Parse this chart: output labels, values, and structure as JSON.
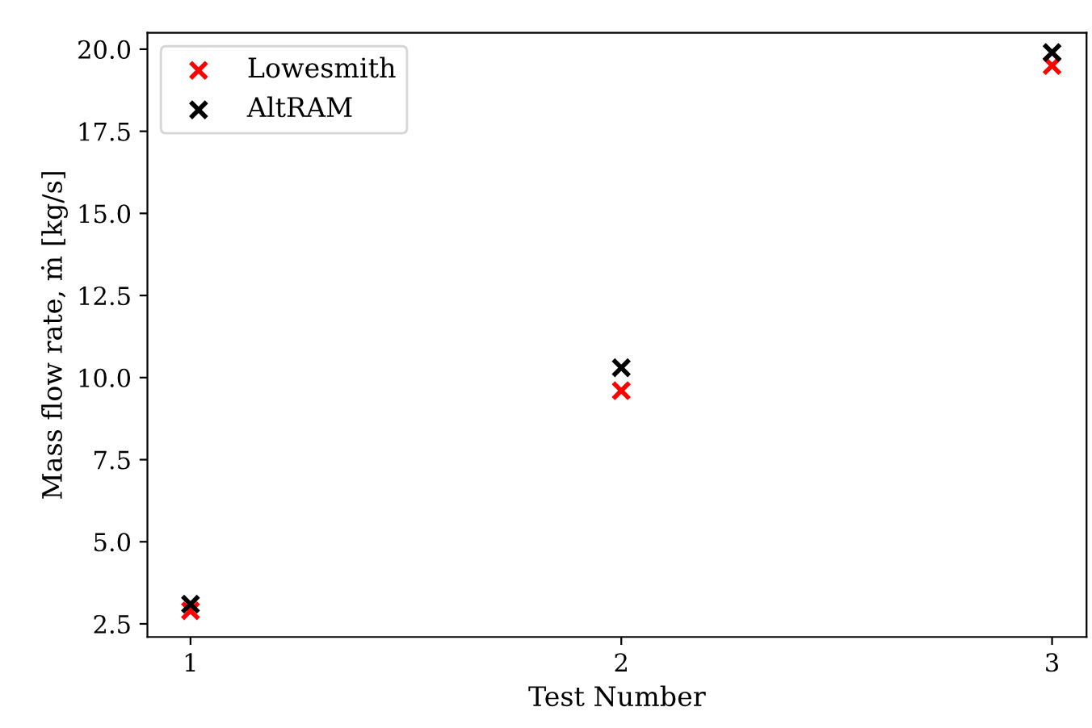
{
  "chart_data": {
    "type": "scatter",
    "xlabel": "Test Number",
    "ylabel": "Mass flow rate, ṁ [kg/s]",
    "x": [
      1,
      2,
      3
    ],
    "series": [
      {
        "name": "Lowesmith",
        "color": "#ff0000",
        "values": [
          2.9,
          9.6,
          19.5
        ]
      },
      {
        "name": "AltRAM",
        "color": "#000000",
        "values": [
          3.1,
          10.3,
          19.9
        ]
      }
    ],
    "xlim": [
      0.9,
      3.08
    ],
    "xticks": [
      1,
      2,
      3
    ],
    "ylim": [
      2.1,
      20.5
    ],
    "yticks": [
      {
        "value": 2.5,
        "label": "2.5"
      },
      {
        "value": 5,
        "label": "5.0"
      },
      {
        "value": 7.5,
        "label": "7.5"
      },
      {
        "value": 10,
        "label": "10.0"
      },
      {
        "value": 12.5,
        "label": "12.5"
      },
      {
        "value": 15,
        "label": "15.0"
      },
      {
        "value": 17.5,
        "label": "17.5"
      },
      {
        "value": 20,
        "label": "20.0"
      }
    ],
    "marker": "cross",
    "legend": "top left",
    "grid": false
  }
}
